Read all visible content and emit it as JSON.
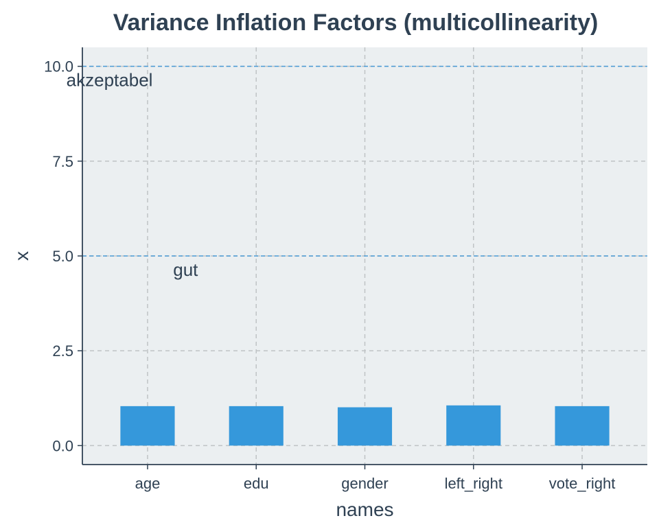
{
  "chart_data": {
    "type": "bar",
    "title": "Variance Inflation Factors (multicollinearity)",
    "xlabel": "names",
    "ylabel": "x",
    "categories": [
      "age",
      "edu",
      "gender",
      "left_right",
      "vote_right"
    ],
    "values": [
      1.04,
      1.04,
      1.01,
      1.06,
      1.04
    ],
    "ylim": [
      -0.5,
      10.5
    ],
    "yticks": [
      0.0,
      2.5,
      5.0,
      7.5,
      10.0
    ],
    "ytick_labels": [
      "0.0",
      "2.5",
      "5.0",
      "7.5",
      "10.0"
    ],
    "grid": true,
    "reference_lines": [
      {
        "value": 10,
        "label": "akzeptabel",
        "label_category": "age",
        "label_offset": -0.35
      },
      {
        "value": 5,
        "label": "gut",
        "label_category": "age",
        "label_offset": 0.35
      }
    ]
  },
  "colors": {
    "bar": "#3598DB",
    "panel_background": "#EBEFF1",
    "grid": "#BFC3C5",
    "reference_line": "#4A9BD5",
    "text": "#2F4153",
    "axis_line": "#2F4153"
  }
}
